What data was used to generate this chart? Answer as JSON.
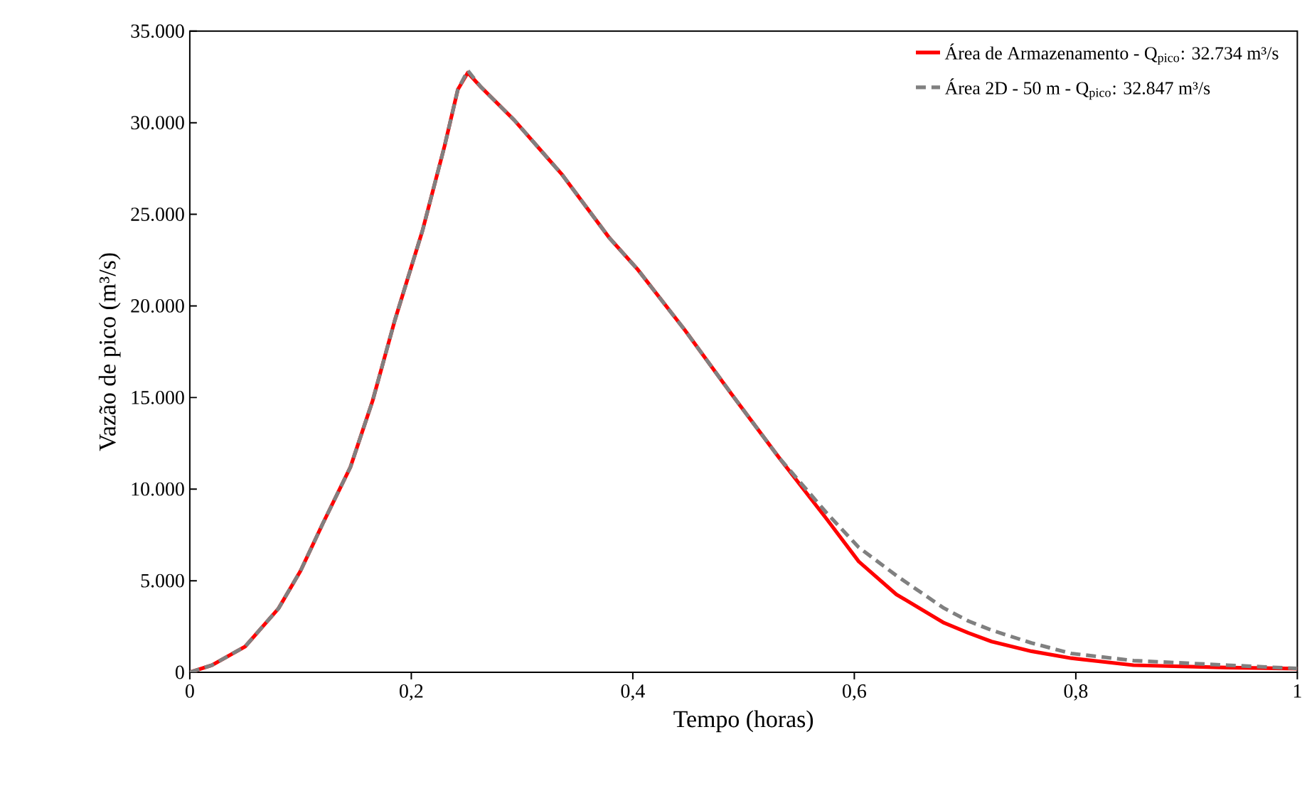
{
  "chart_data": {
    "type": "line",
    "xlabel": "Tempo (horas)",
    "ylabel": "Vazão de pico (m³/s)",
    "x": [
      0,
      0.02,
      0.05,
      0.08,
      0.1,
      0.12,
      0.145,
      0.165,
      0.185,
      0.21,
      0.23,
      0.242,
      0.251,
      0.263,
      0.293,
      0.336,
      0.379,
      0.404,
      0.447,
      0.489,
      0.532,
      0.575,
      0.604,
      0.638,
      0.681,
      0.703,
      0.724,
      0.76,
      0.796,
      0.852,
      0.937,
      1.0
    ],
    "series": [
      {
        "name": "Área de Armazenamento - Q$_{pico}$: 32.734  m³/s",
        "color": "#ff0000",
        "line_style": "solid",
        "values": [
          0,
          390,
          1410,
          3480,
          5540,
          8110,
          11200,
          14810,
          19190,
          24090,
          28720,
          31810,
          32734,
          31940,
          30140,
          27180,
          23700,
          22020,
          18680,
          15200,
          11720,
          8370,
          6050,
          4250,
          2700,
          2150,
          1680,
          1150,
          770,
          390,
          260,
          200
        ]
      },
      {
        "name": "Área 2D - 50 m - Q$_{pico}$: 32.847  m³/s",
        "color": "#808080",
        "line_style": "dashed",
        "values": [
          0,
          390,
          1410,
          3480,
          5540,
          8110,
          11200,
          14810,
          19190,
          24090,
          28720,
          31810,
          32847,
          31940,
          30140,
          27180,
          23700,
          22020,
          18680,
          15200,
          11720,
          8700,
          6820,
          5280,
          3500,
          2800,
          2300,
          1600,
          1030,
          640,
          390,
          210
        ]
      }
    ],
    "xlim": [
      0,
      1
    ],
    "ylim": [
      0,
      35000
    ],
    "xticks": [
      0,
      {
        "value": 0.2,
        "label": "0,2"
      },
      {
        "value": 0.4,
        "label": "0,4"
      },
      {
        "value": 0.6,
        "label": "0,6"
      },
      {
        "value": 0.8,
        "label": "0,8"
      },
      1
    ],
    "yticks": [
      0,
      {
        "value": 5000,
        "label": "5.000"
      },
      {
        "value": 10000,
        "label": "10.000"
      },
      {
        "value": 15000,
        "label": "15.000"
      },
      {
        "value": 20000,
        "label": "20.000"
      },
      {
        "value": 25000,
        "label": "25.000"
      },
      {
        "value": 30000,
        "label": "30.000"
      },
      {
        "value": 35000,
        "label": "35.000"
      }
    ],
    "grid": false,
    "legend": "top right",
    "marker": "none"
  }
}
